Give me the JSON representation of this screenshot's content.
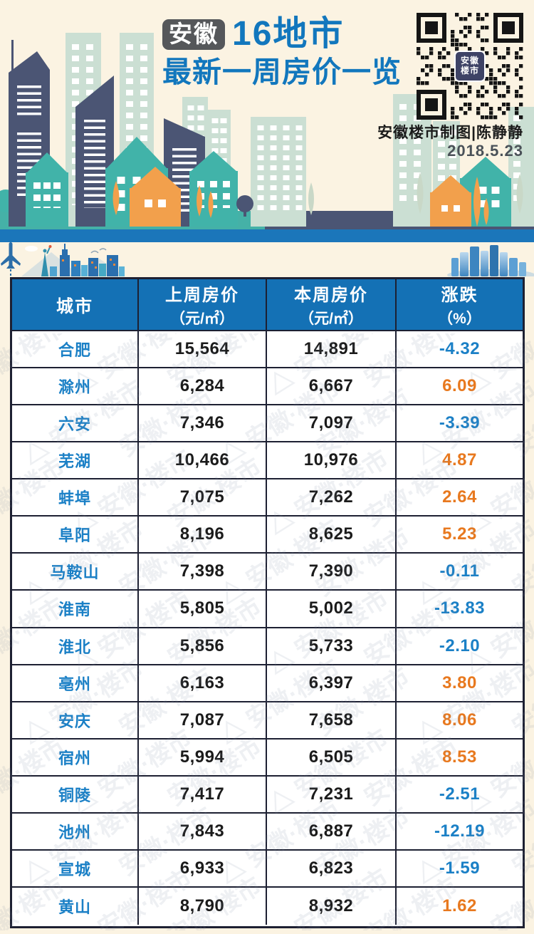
{
  "header": {
    "badge": "安徽",
    "title_line1": "16地市",
    "title_line2": "最新一周房价一览",
    "credit": "安徽楼市制图|陈静静",
    "date": "2018.5.23",
    "qr": {
      "logo_line1": "安徽",
      "logo_line2": "楼市"
    }
  },
  "table": {
    "columns": [
      {
        "line1": "城市",
        "line2": ""
      },
      {
        "line1": "上周房价",
        "line2": "（元/㎡）"
      },
      {
        "line1": "本周房价",
        "line2": "（元/㎡）"
      },
      {
        "line1": "涨跌",
        "line2": "（%）"
      }
    ]
  },
  "watermark_text": "安徽·楼市",
  "colors": {
    "background_cream": "#fbf3e2",
    "header_blue": "#1471b5",
    "rise_orange": "#e8791f",
    "fall_blue": "#1b80c6",
    "border_navy": "#1d2032",
    "ground_teal": "#45b1a7",
    "ground_navy": "#4b5574",
    "strip_blue": "#1b76ba"
  },
  "chart_data": {
    "type": "table",
    "title": "安徽16地市 最新一周房价一览",
    "date": "2018.5.23",
    "columns": [
      "城市",
      "上周房价（元/㎡）",
      "本周房价（元/㎡）",
      "涨跌（%）"
    ],
    "rows": [
      {
        "city": "合肥",
        "last_week": 15564,
        "this_week": 14891,
        "change_pct": -4.32
      },
      {
        "city": "滁州",
        "last_week": 6284,
        "this_week": 6667,
        "change_pct": 6.09
      },
      {
        "city": "六安",
        "last_week": 7346,
        "this_week": 7097,
        "change_pct": -3.39
      },
      {
        "city": "芜湖",
        "last_week": 10466,
        "this_week": 10976,
        "change_pct": 4.87
      },
      {
        "city": "蚌埠",
        "last_week": 7075,
        "this_week": 7262,
        "change_pct": 2.64
      },
      {
        "city": "阜阳",
        "last_week": 8196,
        "this_week": 8625,
        "change_pct": 5.23
      },
      {
        "city": "马鞍山",
        "last_week": 7398,
        "this_week": 7390,
        "change_pct": -0.11
      },
      {
        "city": "淮南",
        "last_week": 5805,
        "this_week": 5002,
        "change_pct": -13.83
      },
      {
        "city": "淮北",
        "last_week": 5856,
        "this_week": 5733,
        "change_pct": -2.1
      },
      {
        "city": "亳州",
        "last_week": 6163,
        "this_week": 6397,
        "change_pct": 3.8
      },
      {
        "city": "安庆",
        "last_week": 7087,
        "this_week": 7658,
        "change_pct": 8.06
      },
      {
        "city": "宿州",
        "last_week": 5994,
        "this_week": 6505,
        "change_pct": 8.53
      },
      {
        "city": "铜陵",
        "last_week": 7417,
        "this_week": 7231,
        "change_pct": -2.51
      },
      {
        "city": "池州",
        "last_week": 7843,
        "this_week": 6887,
        "change_pct": -12.19
      },
      {
        "city": "宣城",
        "last_week": 6933,
        "this_week": 6823,
        "change_pct": -1.59
      },
      {
        "city": "黄山",
        "last_week": 8790,
        "this_week": 8932,
        "change_pct": 1.62
      }
    ]
  }
}
